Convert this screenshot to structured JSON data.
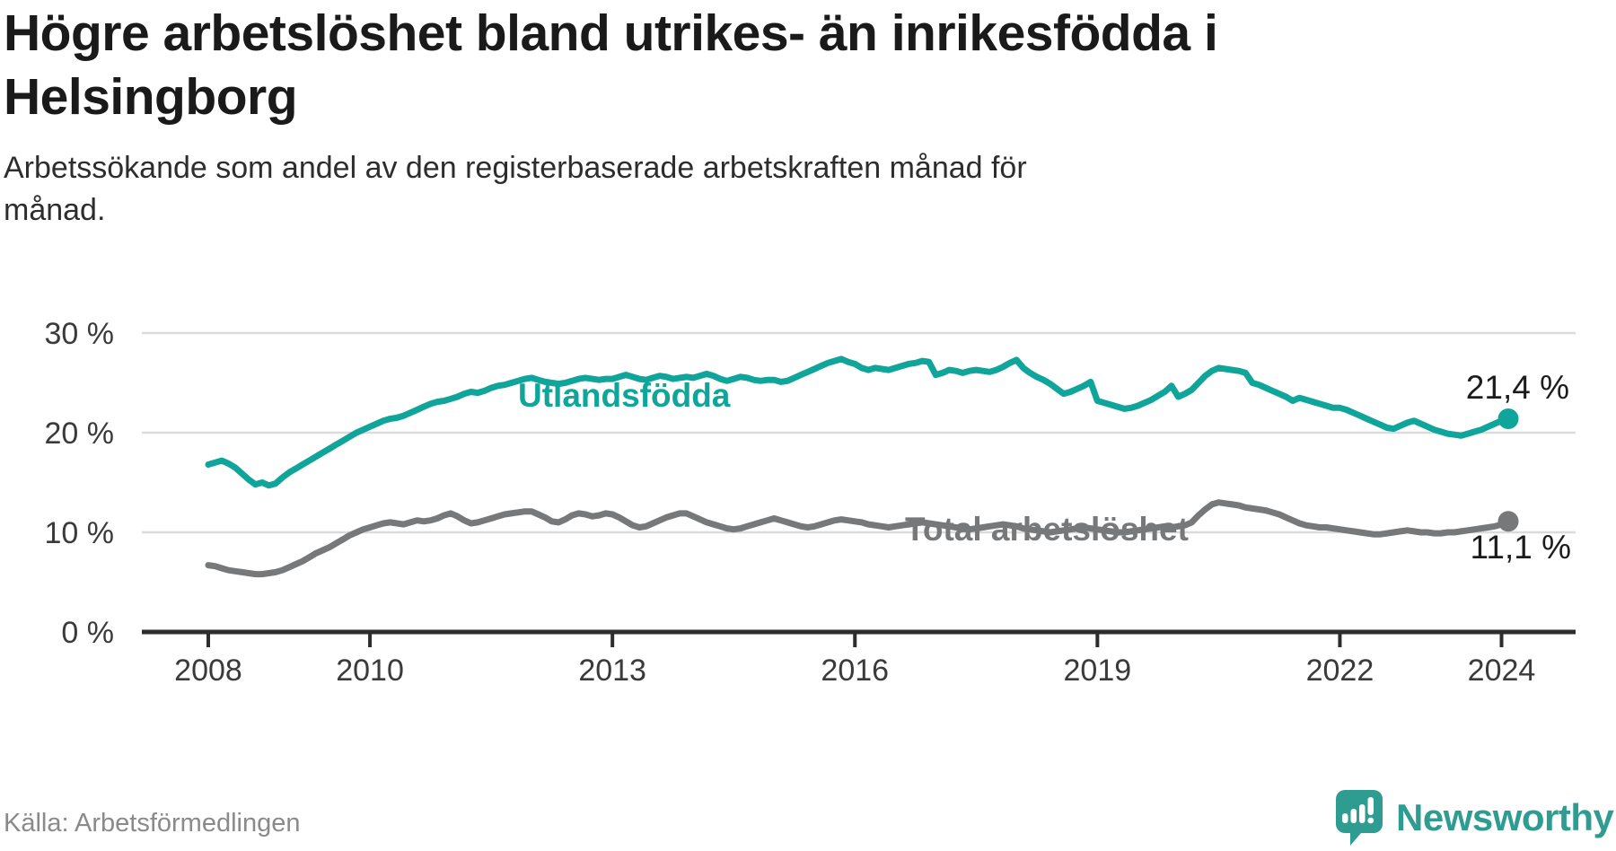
{
  "header": {
    "title_lines": [
      "Högre arbetslöshet bland utrikes- än inrikesfödda i",
      "Helsingborg"
    ],
    "subtitle_lines": [
      "Arbetssökande som andel av den registerbaserade arbetskraften månad för",
      "månad."
    ]
  },
  "footer": {
    "source": "Källa: Arbetsförmedlingen",
    "brand": "Newsworthy"
  },
  "colors": {
    "accent_teal": "#10A59A",
    "line_gray": "#76787A",
    "logo_teal": "#2F9C92",
    "axis_dark": "#2D2D2D",
    "gridline": "#DBDBDB",
    "tick_text": "#3A3A3A",
    "value_text": "#1C1C1C"
  },
  "chart_data": {
    "type": "line",
    "title": "Högre arbetslöshet bland utrikes- än inrikesfödda i Helsingborg",
    "subtitle": "Arbetssökande som andel av den registerbaserade arbetskraften månad för månad.",
    "source": "Källa: Arbetsförmedlingen",
    "unit": "%",
    "x_start": "2008-01",
    "x_end": "2024-02",
    "start_year": 2008,
    "ylim": [
      0,
      32
    ],
    "grid": true,
    "legend_position": "inline-labels",
    "y_ticks": [
      {
        "value": 0,
        "label": "0 %"
      },
      {
        "value": 10,
        "label": "10 %"
      },
      {
        "value": 20,
        "label": "20 %"
      },
      {
        "value": 30,
        "label": "30 %"
      }
    ],
    "x_ticks": [
      {
        "year": 2008,
        "label": "2008"
      },
      {
        "year": 2010,
        "label": "2010"
      },
      {
        "year": 2013,
        "label": "2013"
      },
      {
        "year": 2016,
        "label": "2016"
      },
      {
        "year": 2019,
        "label": "2019"
      },
      {
        "year": 2022,
        "label": "2022"
      },
      {
        "year": 2024,
        "label": "2024"
      }
    ],
    "series": [
      {
        "name": "Utlandsfödda",
        "slug": "utlandsfodda",
        "color": "#10A59A",
        "end_label": "21,4 %",
        "end_value": 21.4,
        "values": [
          16.8,
          17.0,
          17.2,
          16.9,
          16.5,
          15.9,
          15.3,
          14.8,
          15.0,
          14.7,
          14.9,
          15.5,
          16.0,
          16.4,
          16.8,
          17.2,
          17.6,
          18.0,
          18.4,
          18.8,
          19.2,
          19.6,
          20.0,
          20.3,
          20.6,
          20.9,
          21.2,
          21.4,
          21.5,
          21.7,
          22.0,
          22.3,
          22.6,
          22.9,
          23.1,
          23.2,
          23.4,
          23.6,
          23.9,
          24.1,
          24.0,
          24.2,
          24.5,
          24.7,
          24.8,
          25.0,
          25.2,
          25.4,
          25.5,
          25.3,
          25.1,
          25.0,
          24.9,
          25.0,
          25.2,
          25.4,
          25.5,
          25.4,
          25.3,
          25.4,
          25.4,
          25.6,
          25.8,
          25.6,
          25.4,
          25.3,
          25.5,
          25.7,
          25.6,
          25.4,
          25.5,
          25.6,
          25.5,
          25.7,
          25.9,
          25.7,
          25.4,
          25.2,
          25.4,
          25.6,
          25.5,
          25.3,
          25.2,
          25.3,
          25.3,
          25.1,
          25.2,
          25.5,
          25.8,
          26.1,
          26.4,
          26.7,
          27.0,
          27.2,
          27.4,
          27.1,
          26.9,
          26.5,
          26.3,
          26.5,
          26.4,
          26.3,
          26.5,
          26.7,
          26.9,
          27.0,
          27.2,
          27.1,
          25.8,
          26.0,
          26.3,
          26.2,
          26.0,
          26.2,
          26.3,
          26.2,
          26.1,
          26.3,
          26.6,
          27.0,
          27.3,
          26.5,
          26.0,
          25.6,
          25.3,
          24.9,
          24.4,
          23.9,
          24.1,
          24.4,
          24.7,
          25.1,
          23.2,
          23.0,
          22.8,
          22.6,
          22.4,
          22.5,
          22.7,
          23.0,
          23.3,
          23.7,
          24.1,
          24.7,
          23.6,
          23.9,
          24.3,
          25.0,
          25.7,
          26.2,
          26.5,
          26.4,
          26.3,
          26.2,
          26.0,
          25.0,
          24.8,
          24.5,
          24.2,
          23.9,
          23.6,
          23.2,
          23.5,
          23.3,
          23.1,
          22.9,
          22.7,
          22.5,
          22.5,
          22.3,
          22.0,
          21.7,
          21.4,
          21.1,
          20.8,
          20.5,
          20.4,
          20.7,
          21.0,
          21.2,
          20.9,
          20.6,
          20.3,
          20.1,
          19.9,
          19.8,
          19.7,
          19.9,
          20.1,
          20.3,
          20.6,
          20.9,
          21.2,
          21.4
        ]
      },
      {
        "name": "Total arbetslöshet",
        "slug": "total-arbetsloshet",
        "color": "#76787A",
        "end_label": "11,1 %",
        "end_value": 11.1,
        "values": [
          6.7,
          6.6,
          6.4,
          6.2,
          6.1,
          6.0,
          5.9,
          5.8,
          5.8,
          5.9,
          6.0,
          6.2,
          6.5,
          6.8,
          7.1,
          7.5,
          7.9,
          8.2,
          8.5,
          8.9,
          9.3,
          9.7,
          10.0,
          10.3,
          10.5,
          10.7,
          10.9,
          11.0,
          10.9,
          10.8,
          11.0,
          11.2,
          11.1,
          11.2,
          11.4,
          11.7,
          11.9,
          11.6,
          11.2,
          10.9,
          11.0,
          11.2,
          11.4,
          11.6,
          11.8,
          11.9,
          12.0,
          12.1,
          12.1,
          11.8,
          11.5,
          11.1,
          11.0,
          11.3,
          11.7,
          11.9,
          11.8,
          11.6,
          11.7,
          11.9,
          11.8,
          11.5,
          11.1,
          10.7,
          10.5,
          10.6,
          10.9,
          11.2,
          11.5,
          11.7,
          11.9,
          11.9,
          11.6,
          11.3,
          11.0,
          10.8,
          10.6,
          10.4,
          10.3,
          10.4,
          10.6,
          10.8,
          11.0,
          11.2,
          11.4,
          11.2,
          11.0,
          10.8,
          10.6,
          10.5,
          10.6,
          10.8,
          11.0,
          11.2,
          11.3,
          11.2,
          11.1,
          11.0,
          10.8,
          10.7,
          10.6,
          10.5,
          10.6,
          10.7,
          10.8,
          10.9,
          11.0,
          10.9,
          10.8,
          10.7,
          10.6,
          10.5,
          10.4,
          10.3,
          10.4,
          10.5,
          10.6,
          10.7,
          10.8,
          10.7,
          10.6,
          10.4,
          10.3,
          10.2,
          10.1,
          10.0,
          10.1,
          10.2,
          10.3,
          10.4,
          10.5,
          10.4,
          10.3,
          10.2,
          10.1,
          10.0,
          10.0,
          10.1,
          10.2,
          10.3,
          10.4,
          10.5,
          10.6,
          10.5,
          10.6,
          10.7,
          11.0,
          11.7,
          12.3,
          12.8,
          13.0,
          12.9,
          12.8,
          12.7,
          12.5,
          12.4,
          12.3,
          12.2,
          12.0,
          11.8,
          11.5,
          11.2,
          10.9,
          10.7,
          10.6,
          10.5,
          10.5,
          10.4,
          10.3,
          10.2,
          10.1,
          10.0,
          9.9,
          9.8,
          9.8,
          9.9,
          10.0,
          10.1,
          10.2,
          10.1,
          10.0,
          10.0,
          9.9,
          9.9,
          10.0,
          10.0,
          10.1,
          10.2,
          10.3,
          10.4,
          10.5,
          10.6,
          10.8,
          11.1
        ]
      }
    ]
  }
}
